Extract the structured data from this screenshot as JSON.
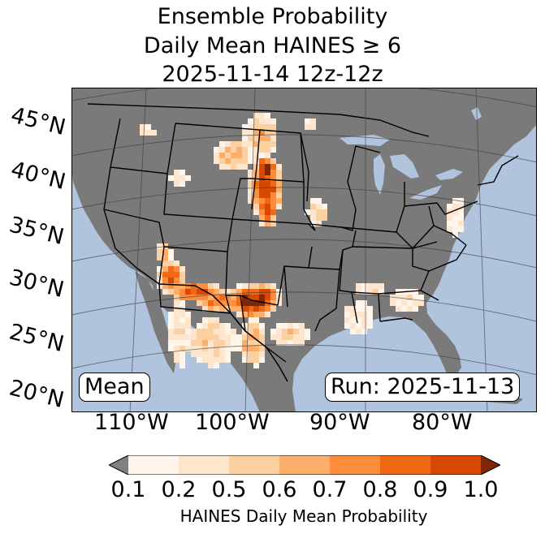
{
  "title": {
    "line1": "Ensemble Probability",
    "line2": "Daily Mean HAINES ≥ 6",
    "line3": "2025-11-14 12z-12z"
  },
  "lat_labels": [
    "45°N",
    "40°N",
    "35°N",
    "30°N",
    "25°N",
    "20°N"
  ],
  "lon_labels": [
    "110°W",
    "100°W",
    "90°W",
    "80°W"
  ],
  "boxes": {
    "left": "Mean",
    "right": "Run: 2025-11-13"
  },
  "colorbar": {
    "ticks": [
      "0.1",
      "0.2",
      "0.5",
      "0.6",
      "0.7",
      "0.8",
      "0.9",
      "1.0"
    ],
    "label": "HAINES Daily Mean Probability",
    "colors": [
      "#fff5eb",
      "#fee6ce",
      "#fdd0a2",
      "#fdae6b",
      "#fd8d3c",
      "#f16913",
      "#d94801",
      "#7f2704"
    ],
    "under_color": "#808080"
  },
  "colors": {
    "ocean": "#b0c4de",
    "land": "#7a7a7a"
  }
}
